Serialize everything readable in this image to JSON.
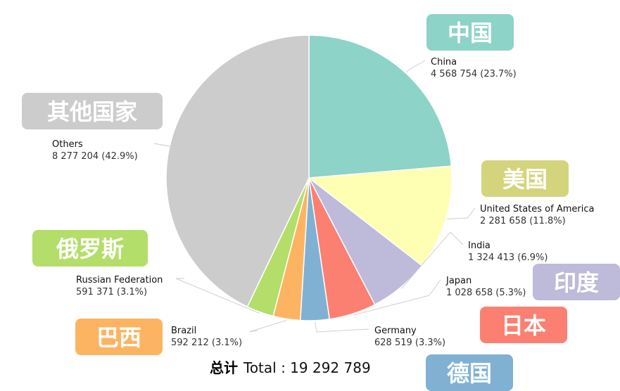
{
  "chart_data": {
    "type": "pie",
    "series": [
      {
        "key": "china",
        "label": "China",
        "zh": "中国",
        "value": 4568754,
        "value_text": "4 568 754 (23.7%)",
        "color": "#8dd3c7"
      },
      {
        "key": "usa",
        "label": "United States of America",
        "zh": "美国",
        "value": 2281658,
        "value_text": "2 281 658 (11.8%)",
        "color": "#ffffb3",
        "badge_color": "#d4d47d"
      },
      {
        "key": "india",
        "label": "India",
        "zh": "印度",
        "value": 1324413,
        "value_text": "1 324 413 (6.9%)",
        "color": "#bebada"
      },
      {
        "key": "japan",
        "label": "Japan",
        "zh": "日本",
        "value": 1028658,
        "value_text": "1 028 658 (5.3%)",
        "color": "#fb8072"
      },
      {
        "key": "germany",
        "label": "Germany",
        "zh": "德国",
        "value": 628519,
        "value_text": "628 519 (3.3%)",
        "color": "#80b1d3"
      },
      {
        "key": "brazil",
        "label": "Brazil",
        "zh": "巴西",
        "value": 592212,
        "value_text": "592 212 (3.1%)",
        "color": "#fdb462"
      },
      {
        "key": "russia",
        "label": "Russian Federation",
        "zh": "俄罗斯",
        "value": 591371,
        "value_text": "591 371 (3.1%)",
        "color": "#b3de69"
      },
      {
        "key": "others",
        "label": "Others",
        "zh": "其他国家",
        "value": 8277204,
        "value_text": "8 277 204 (42.9%)",
        "color": "#cccccc"
      }
    ],
    "total_zh": "总计",
    "total_text": "Total : 19 292 789"
  }
}
